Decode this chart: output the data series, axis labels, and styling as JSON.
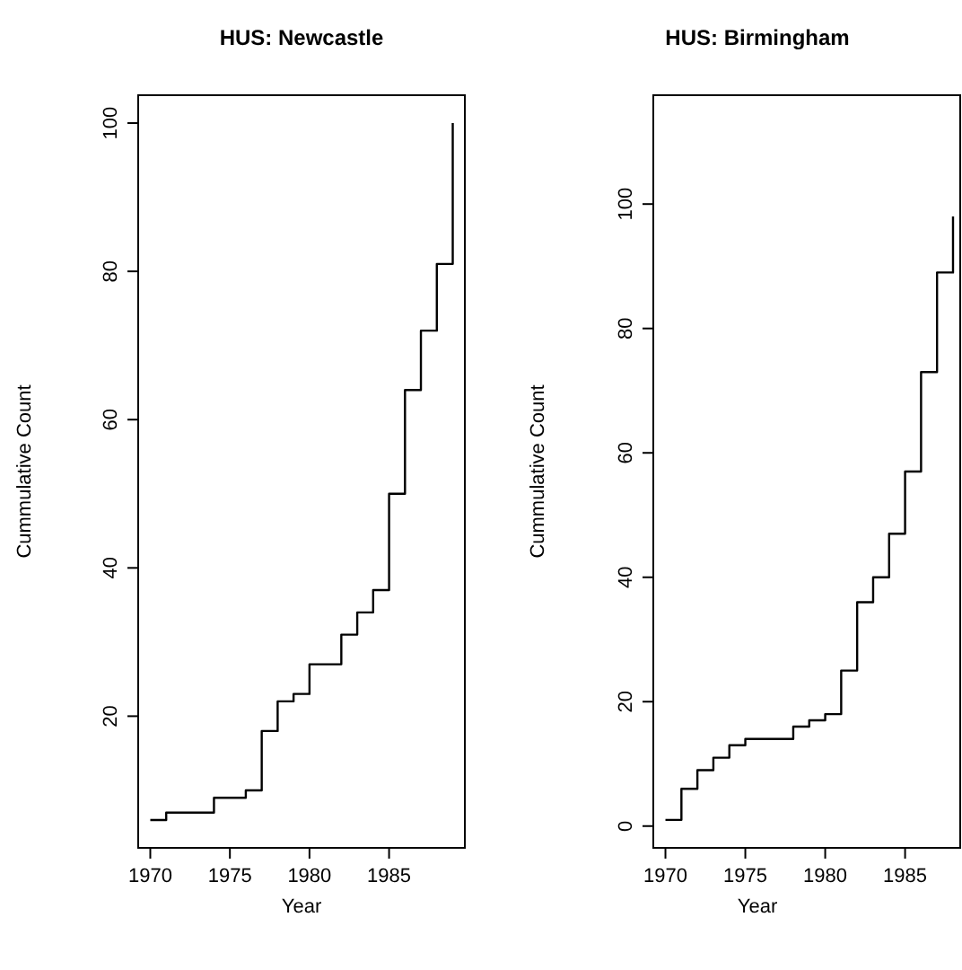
{
  "chart_data": [
    {
      "type": "step",
      "title": "HUS: Newcastle",
      "xlabel": "Year",
      "ylabel": "Cummulative Count",
      "x": [
        1970,
        1971,
        1974,
        1976,
        1977,
        1978,
        1979,
        1980,
        1982,
        1983,
        1984,
        1985,
        1986,
        1987,
        1988,
        1989
      ],
      "series": [
        {
          "color": "#000000",
          "values": [
            6,
            7,
            9,
            10,
            18,
            22,
            23,
            27,
            31,
            34,
            37,
            50,
            64,
            72,
            81,
            100
          ]
        }
      ],
      "xlim": [
        1969.24,
        1989.76
      ],
      "ylim": [
        2.24,
        103.76
      ],
      "xticks": [
        1970,
        1975,
        1980,
        1985
      ],
      "yticks": [
        20,
        40,
        60,
        80,
        100
      ],
      "grid": false
    },
    {
      "type": "step",
      "title": "HUS: Birmingham",
      "xlabel": "Year",
      "ylabel": "Cummulative Count",
      "x": [
        1970,
        1971,
        1972,
        1973,
        1974,
        1975,
        1978,
        1979,
        1980,
        1981,
        1982,
        1983,
        1984,
        1985,
        1986,
        1987,
        1988
      ],
      "series": [
        {
          "color": "#000000",
          "values": [
            1,
            6,
            9,
            11,
            13,
            14,
            16,
            17,
            18,
            25,
            36,
            40,
            47,
            57,
            73,
            89,
            98
          ]
        }
      ],
      "xlim": [
        1969.24,
        1988.45
      ],
      "ylim": [
        -3.5,
        117.5
      ],
      "xticks": [
        1970,
        1975,
        1980,
        1985
      ],
      "yticks": [
        0,
        20,
        40,
        60,
        80,
        100
      ],
      "grid": false
    }
  ]
}
